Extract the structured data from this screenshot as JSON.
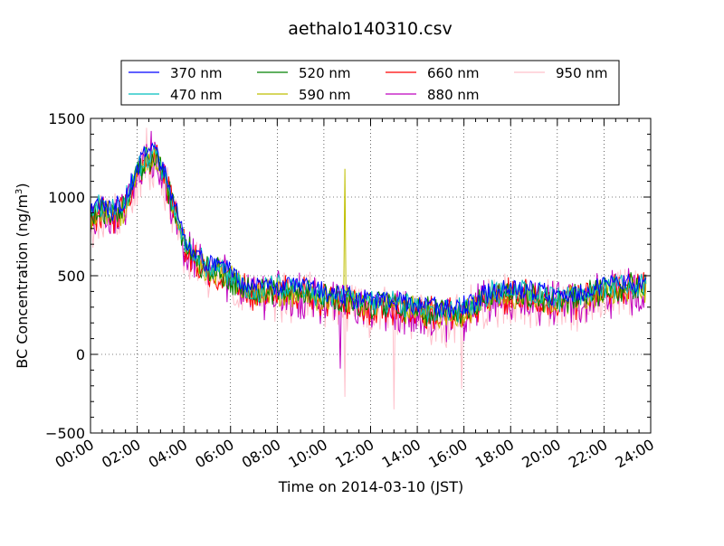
{
  "chart_data": {
    "type": "line",
    "title": "aethalo140310.csv",
    "xlabel": "Time on 2014-03-10 (JST)",
    "ylabel_main": "BC Concentration (ng/m",
    "ylabel_sup": "3",
    "ylabel_end": ")",
    "xlim": [
      0,
      24
    ],
    "ylim": [
      -500,
      1500
    ],
    "yticks": [
      -500,
      0,
      500,
      1000,
      1500
    ],
    "ytick_labels": [
      "−500",
      "0",
      "500",
      "1000",
      "1500"
    ],
    "xticks": [
      0,
      2,
      4,
      6,
      8,
      10,
      12,
      14,
      16,
      18,
      20,
      22,
      24
    ],
    "xtick_labels": [
      "00:00",
      "02:00",
      "04:00",
      "06:00",
      "08:00",
      "10:00",
      "12:00",
      "14:00",
      "16:00",
      "18:00",
      "20:00",
      "22:00",
      "24:00"
    ],
    "grid": true,
    "legend_position": "top",
    "x_units": "hours",
    "base_profile": [
      [
        0.0,
        880
      ],
      [
        0.5,
        920
      ],
      [
        1.0,
        880
      ],
      [
        1.5,
        940
      ],
      [
        2.0,
        1150
      ],
      [
        2.4,
        1230
      ],
      [
        2.8,
        1250
      ],
      [
        3.2,
        1100
      ],
      [
        3.6,
        900
      ],
      [
        4.0,
        700
      ],
      [
        4.5,
        600
      ],
      [
        5.0,
        540
      ],
      [
        5.5,
        520
      ],
      [
        6.0,
        480
      ],
      [
        6.5,
        420
      ],
      [
        7.0,
        380
      ],
      [
        8.0,
        400
      ],
      [
        9.0,
        390
      ],
      [
        10.0,
        360
      ],
      [
        11.0,
        330
      ],
      [
        12.0,
        300
      ],
      [
        13.0,
        300
      ],
      [
        14.0,
        280
      ],
      [
        15.0,
        250
      ],
      [
        16.0,
        260
      ],
      [
        16.5,
        300
      ],
      [
        17.0,
        360
      ],
      [
        18.0,
        380
      ],
      [
        19.0,
        360
      ],
      [
        20.0,
        330
      ],
      [
        21.0,
        350
      ],
      [
        22.0,
        400
      ],
      [
        23.0,
        420
      ],
      [
        23.8,
        420
      ]
    ],
    "spikes": [
      {
        "series": "590 nm",
        "x": 10.9,
        "y": 1180
      },
      {
        "series": "950 nm",
        "x": 10.9,
        "y": -270
      },
      {
        "series": "950 nm",
        "x": 13.0,
        "y": -350
      },
      {
        "series": "950 nm",
        "x": 15.9,
        "y": -220
      },
      {
        "series": "880 nm",
        "x": 10.7,
        "y": -90
      },
      {
        "series": "950 nm",
        "x": 2.4,
        "y": 1440
      },
      {
        "series": "880 nm",
        "x": 2.6,
        "y": 1420
      }
    ],
    "series": [
      {
        "name": "370 nm",
        "color": "#0000ff",
        "offset": 40,
        "noise": 60
      },
      {
        "name": "470 nm",
        "color": "#00bfbf",
        "offset": 25,
        "noise": 70
      },
      {
        "name": "520 nm",
        "color": "#008000",
        "offset": 10,
        "noise": 80
      },
      {
        "name": "590 nm",
        "color": "#bfbf00",
        "offset": 0,
        "noise": 80
      },
      {
        "name": "660 nm",
        "color": "#ff0000",
        "offset": -5,
        "noise": 95
      },
      {
        "name": "880 nm",
        "color": "#bf00bf",
        "offset": -20,
        "noise": 130
      },
      {
        "name": "950 nm",
        "color": "#ffc0cb",
        "offset": -30,
        "noise": 150
      }
    ],
    "legend": {
      "columns": [
        [
          "370 nm",
          "470 nm"
        ],
        [
          "520 nm",
          "590 nm"
        ],
        [
          "660 nm",
          "880 nm"
        ],
        [
          "950 nm"
        ]
      ]
    }
  }
}
